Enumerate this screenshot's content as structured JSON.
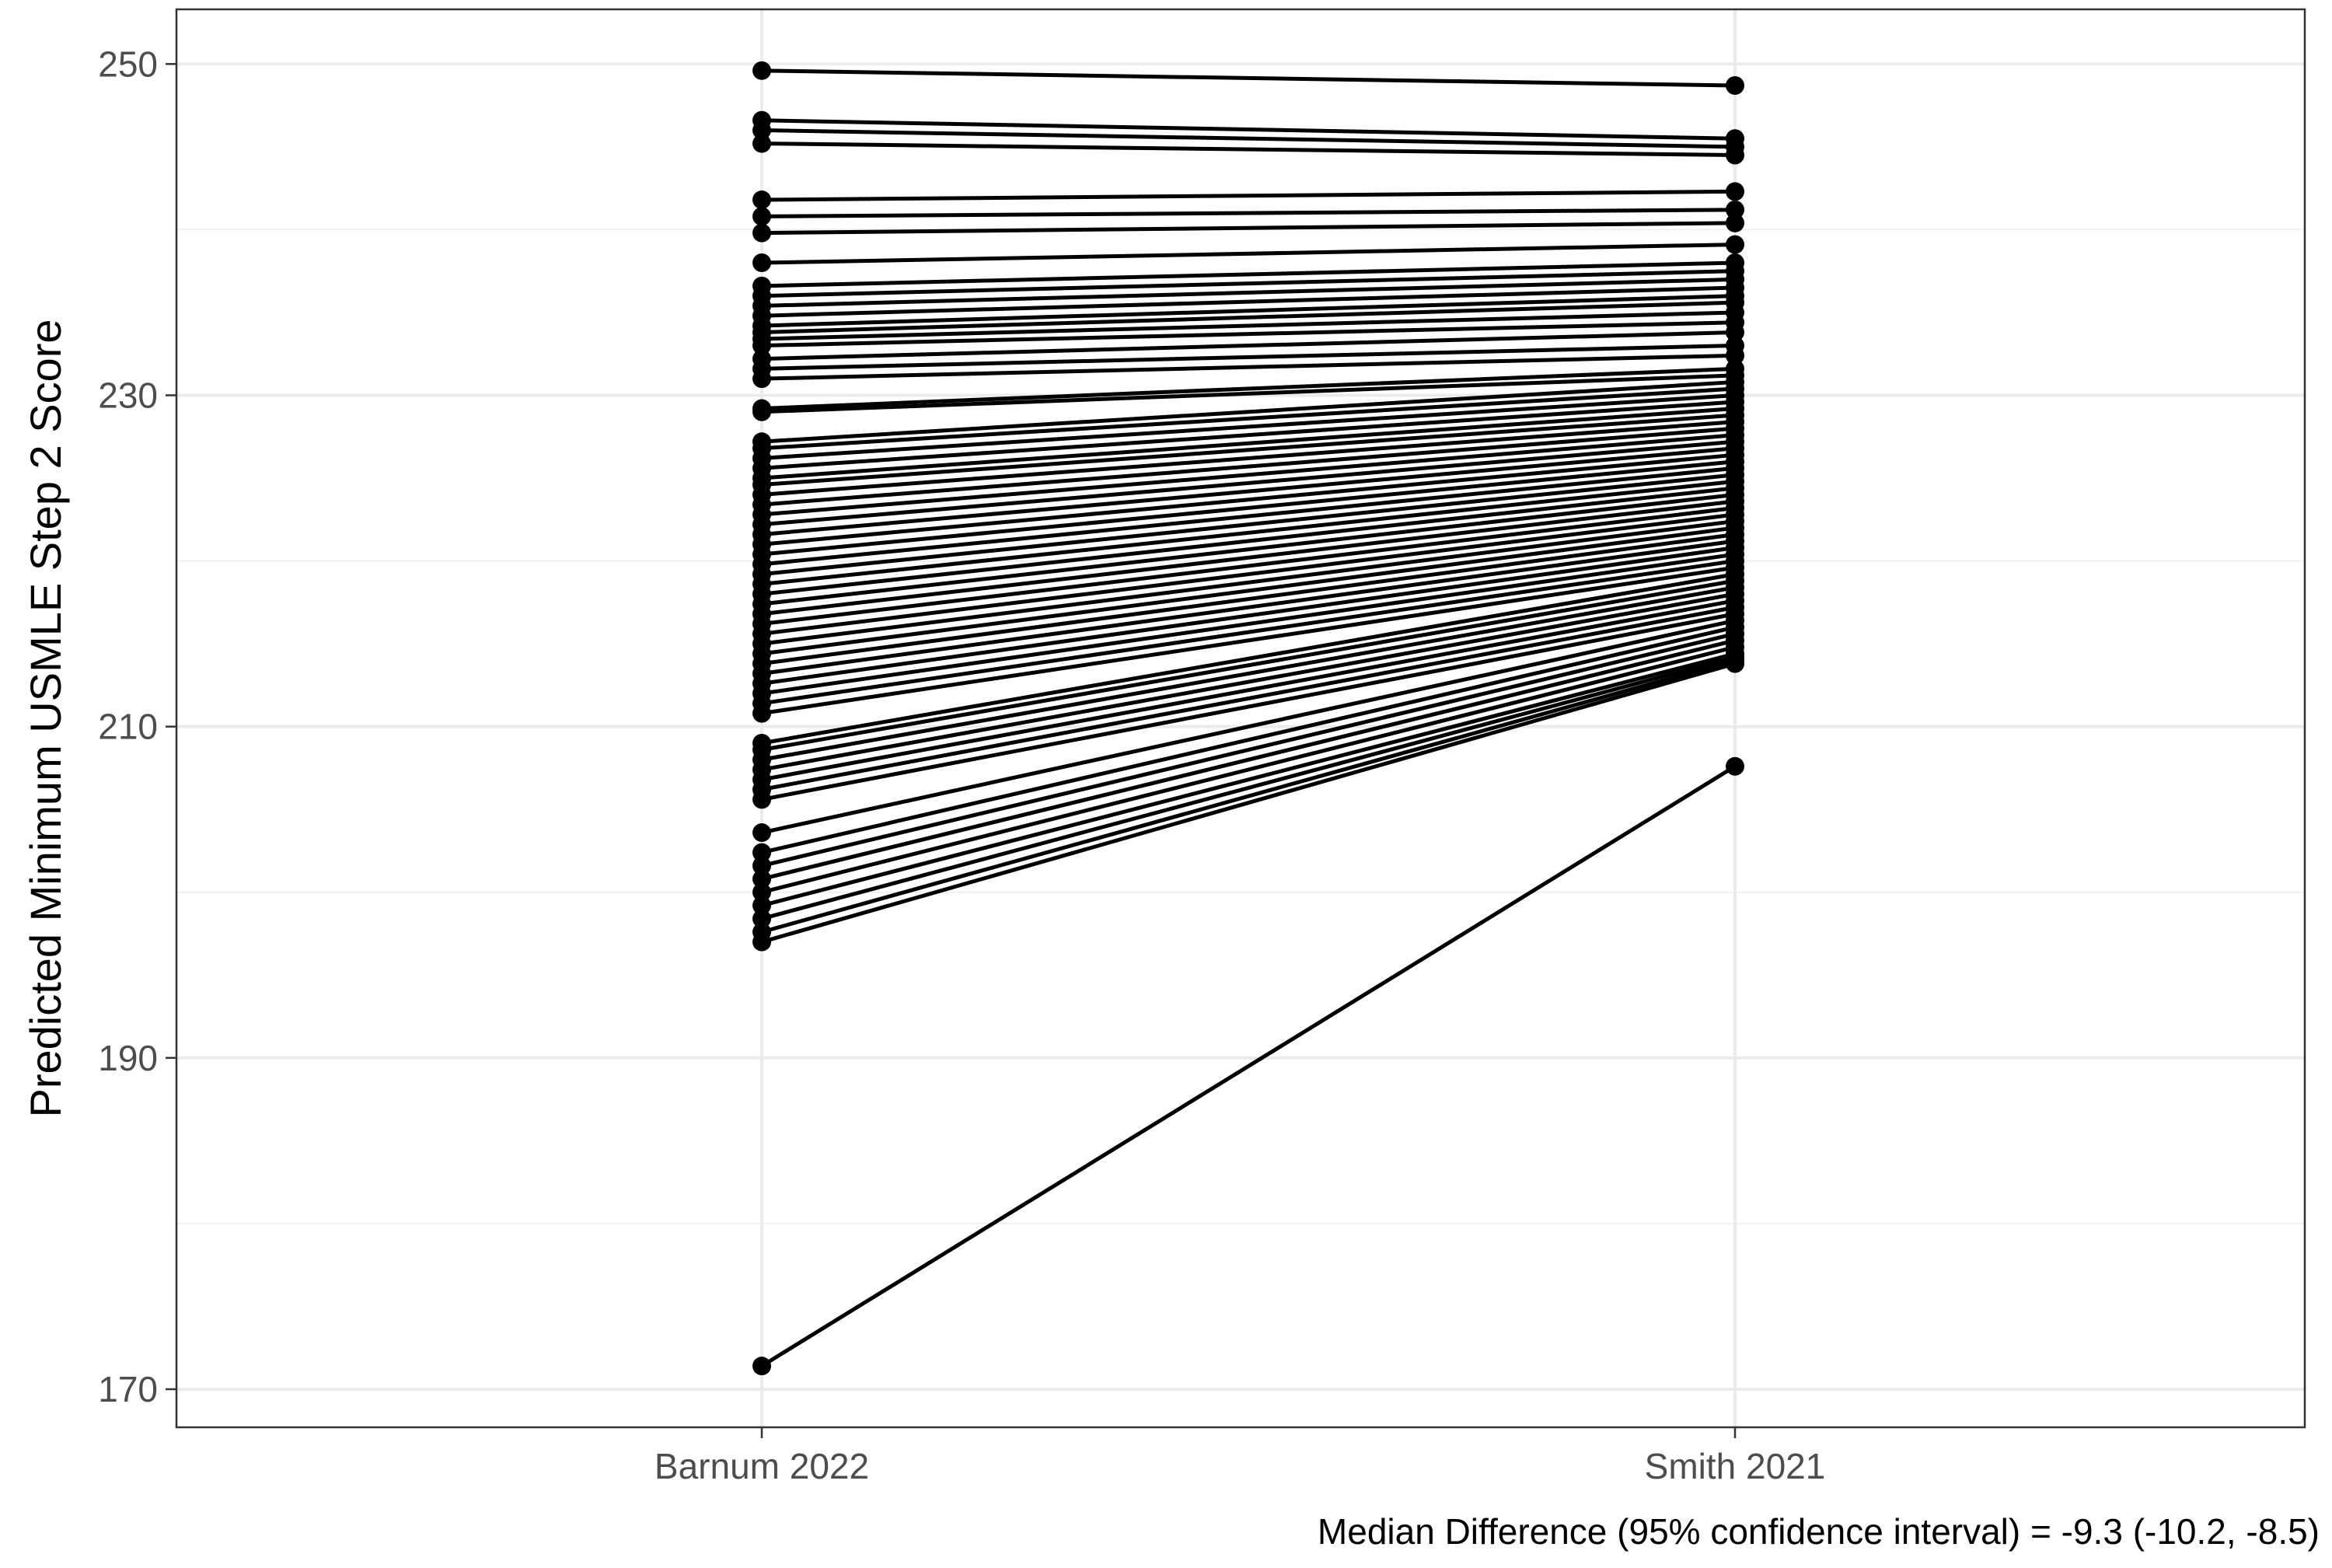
{
  "chart_data": {
    "type": "line",
    "title": "",
    "xlabel": "",
    "ylabel": "Predicted Minimum USMLE Step 2 Score",
    "caption": "Median Difference (95% confidence interval) = -9.3 (-10.2, -8.5)",
    "categories": [
      "Barnum 2022",
      "Smith 2021"
    ],
    "ylim": [
      167.7,
      253.3
    ],
    "yticks": [
      "170",
      "190",
      "210",
      "230",
      "250"
    ],
    "grid": true,
    "legend": "none",
    "line_color": "#000000",
    "point_color": "#000000",
    "pairs": [
      [
        249.6,
        248.7
      ],
      [
        246.6,
        245.5
      ],
      [
        246.0,
        245.0
      ],
      [
        245.2,
        244.5
      ],
      [
        241.8,
        242.3
      ],
      [
        240.8,
        241.2
      ],
      [
        239.8,
        240.4
      ],
      [
        238.0,
        239.1
      ],
      [
        236.6,
        238.0
      ],
      [
        236.0,
        237.5
      ],
      [
        235.4,
        237.0
      ],
      [
        234.8,
        236.5
      ],
      [
        234.2,
        236.0
      ],
      [
        233.8,
        235.6
      ],
      [
        233.4,
        235.0
      ],
      [
        233.0,
        234.4
      ],
      [
        232.2,
        233.8
      ],
      [
        231.6,
        233.0
      ],
      [
        231.0,
        232.4
      ],
      [
        229.2,
        231.6
      ],
      [
        229.0,
        231.2
      ],
      [
        227.2,
        230.8
      ],
      [
        226.8,
        230.4
      ],
      [
        226.2,
        230.0
      ],
      [
        225.6,
        229.6
      ],
      [
        225.0,
        229.2
      ],
      [
        224.6,
        228.8
      ],
      [
        224.0,
        228.4
      ],
      [
        223.4,
        228.0
      ],
      [
        222.8,
        227.6
      ],
      [
        222.2,
        227.2
      ],
      [
        221.6,
        226.8
      ],
      [
        221.0,
        226.4
      ],
      [
        220.4,
        226.0
      ],
      [
        219.8,
        225.6
      ],
      [
        219.2,
        225.2
      ],
      [
        218.6,
        224.8
      ],
      [
        218.0,
        224.4
      ],
      [
        217.4,
        224.0
      ],
      [
        216.8,
        223.6
      ],
      [
        216.2,
        223.2
      ],
      [
        215.6,
        222.8
      ],
      [
        215.0,
        222.4
      ],
      [
        214.4,
        222.0
      ],
      [
        213.8,
        221.6
      ],
      [
        213.2,
        221.2
      ],
      [
        212.6,
        220.8
      ],
      [
        212.0,
        220.4
      ],
      [
        211.4,
        220.0
      ],
      [
        210.8,
        219.6
      ],
      [
        209.0,
        219.2
      ],
      [
        208.6,
        218.8
      ],
      [
        208.0,
        218.4
      ],
      [
        207.4,
        218.0
      ],
      [
        206.8,
        217.6
      ],
      [
        206.2,
        217.2
      ],
      [
        205.6,
        216.8
      ],
      [
        203.6,
        216.4
      ],
      [
        202.4,
        216.0
      ],
      [
        201.6,
        215.6
      ],
      [
        200.8,
        215.2
      ],
      [
        200.0,
        214.8
      ],
      [
        199.2,
        214.4
      ],
      [
        198.4,
        214.2
      ],
      [
        197.6,
        214.0
      ],
      [
        197.0,
        213.8
      ],
      [
        171.4,
        207.6
      ]
    ]
  }
}
